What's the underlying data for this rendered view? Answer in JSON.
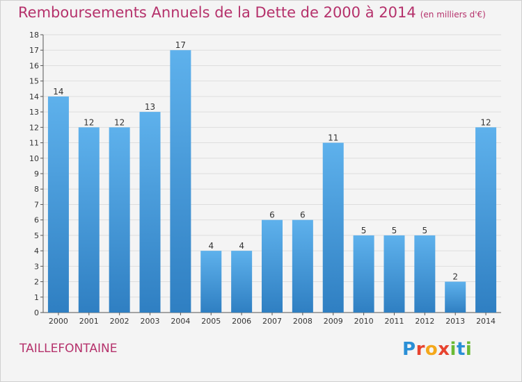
{
  "title": "Remboursements Annuels de la Dette de 2000 à 2014",
  "subtitle": "(en milliers d'€)",
  "commune": "TAILLEFONTAINE",
  "logo": {
    "letters": [
      "P",
      "r",
      "o",
      "x",
      "i",
      "t",
      "i"
    ],
    "colors": [
      "#2a8fd6",
      "#e7432f",
      "#f4a81b",
      "#e7432f",
      "#6aba35",
      "#2a8fd6",
      "#6aba35"
    ]
  },
  "colors": {
    "bar_top": "#5eb1ec",
    "bar_bottom": "#2f7fc2",
    "title": "#b5316b",
    "grid": "#dddddd"
  },
  "chart_data": {
    "type": "bar",
    "categories": [
      "2000",
      "2001",
      "2002",
      "2003",
      "2004",
      "2005",
      "2006",
      "2007",
      "2008",
      "2009",
      "2010",
      "2011",
      "2012",
      "2013",
      "2014"
    ],
    "values": [
      14,
      12,
      12,
      13,
      17,
      4,
      4,
      6,
      6,
      11,
      5,
      5,
      5,
      2,
      12
    ],
    "ylim": [
      0,
      18
    ],
    "yticks": [
      0,
      1,
      2,
      3,
      4,
      5,
      6,
      7,
      8,
      9,
      10,
      11,
      12,
      13,
      14,
      15,
      16,
      17,
      18
    ],
    "grid": true,
    "data_labels": true
  }
}
